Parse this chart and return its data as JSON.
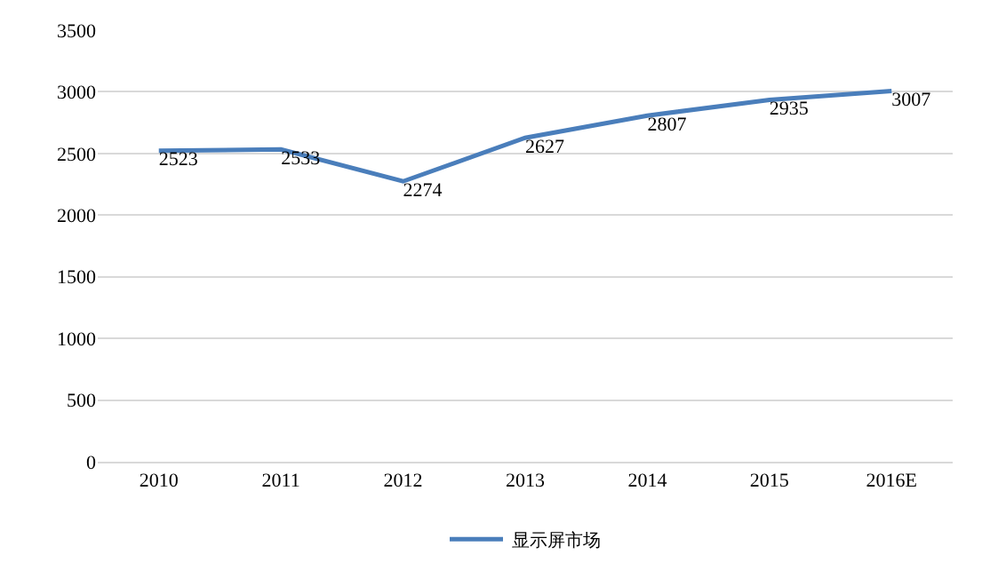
{
  "chart_data": {
    "type": "line",
    "categories": [
      "2010",
      "2011",
      "2012",
      "2013",
      "2014",
      "2015",
      "2016E"
    ],
    "series": [
      {
        "name": "显示屏市场",
        "color": "#4a7ebb",
        "values": [
          2523,
          2533,
          2274,
          2627,
          2807,
          2935,
          3007
        ]
      }
    ],
    "ylim": [
      0,
      3500
    ],
    "yticks": [
      0,
      500,
      1000,
      1500,
      2000,
      2500,
      3000,
      3500
    ],
    "grid": "y",
    "legend": "bottom",
    "data_labels": true,
    "marker": "none",
    "line_style": "solid"
  }
}
